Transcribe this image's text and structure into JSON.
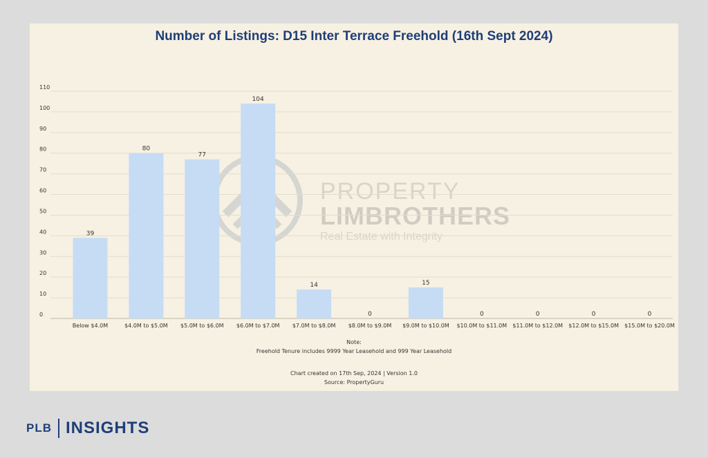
{
  "chart_data": {
    "type": "bar",
    "title": "Number of Listings: D15 Inter Terrace Freehold (16th Sept 2024)",
    "categories": [
      "Below $4.0M",
      "$4.0M to $5.0M",
      "$5.0M to $6.0M",
      "$6.0M to $7.0M",
      "$7.0M to $8.0M",
      "$8.0M to $9.0M",
      "$9.0M to $10.0M",
      "$10.0M to $11.0M",
      "$11.0M to $12.0M",
      "$12.0M to $15.0M",
      "$15.0M to $20.0M"
    ],
    "values": [
      39,
      80,
      77,
      104,
      14,
      0,
      15,
      0,
      0,
      0,
      0
    ],
    "ylim": [
      0,
      110
    ],
    "yticks": [
      0,
      10,
      20,
      30,
      40,
      50,
      60,
      70,
      80,
      90,
      100,
      110
    ],
    "grid": true,
    "bar_color": "#c5dcf4",
    "xlabel": "",
    "ylabel": ""
  },
  "footer": {
    "note_heading": "Note:",
    "note_text": "Freehold Tenure includes 9999 Year Leasehold and 999 Year Leasehold",
    "created": "Chart created on 17th Sep, 2024 | Version 1.0",
    "source": "Source: PropertyGuru"
  },
  "watermark": {
    "line1": "PROPERTY",
    "line2": "LIMBROTHERS",
    "line3": "Real Estate with Integrity"
  },
  "brand": {
    "prefix": "PLB",
    "name": "INSIGHTS"
  },
  "colors": {
    "title": "#1f3e78",
    "background": "#f7f1e3",
    "page": "#dcdcdc"
  }
}
